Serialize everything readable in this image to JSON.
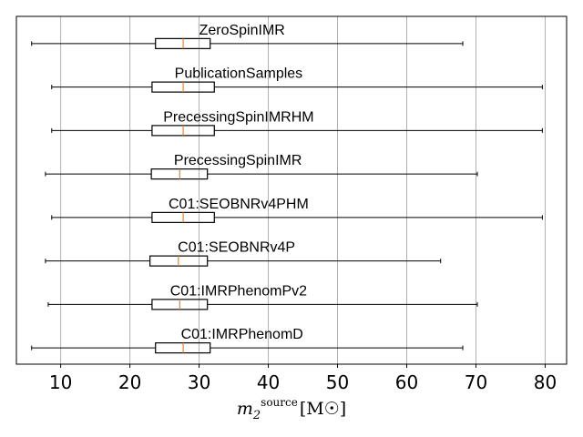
{
  "chart_data": {
    "type": "boxplot",
    "orientation": "horizontal",
    "xlabel": "m₂^source [M☉]",
    "xlabel_parts": {
      "base": "m",
      "sub": "2",
      "sup": "source",
      "unit": "[M☉]"
    },
    "xlim": [
      3.6,
      83.1
    ],
    "xticks": [
      10,
      20,
      30,
      40,
      50,
      60,
      70,
      80
    ],
    "grid": "vertical",
    "legend": "none",
    "colors": {
      "box": "#000000",
      "median": "#ff7f0e",
      "grid": "#b0b0b0",
      "frame": "#000000"
    },
    "series": [
      {
        "name": "ZeroSpinIMR",
        "whislo": 5.8,
        "q1": 23.7,
        "median": 27.7,
        "q3": 31.6,
        "whishi": 68.1
      },
      {
        "name": "PublicationSamples",
        "whislo": 8.7,
        "q1": 23.2,
        "median": 27.7,
        "q3": 32.2,
        "whishi": 79.6
      },
      {
        "name": "PrecessingSpinIMRHM",
        "whislo": 8.7,
        "q1": 23.2,
        "median": 27.7,
        "q3": 32.2,
        "whishi": 79.6
      },
      {
        "name": "PrecessingSpinIMR",
        "whislo": 7.8,
        "q1": 23.1,
        "median": 27.2,
        "q3": 31.2,
        "whishi": 70.2
      },
      {
        "name": "C01:SEOBNRv4PHM",
        "whislo": 8.7,
        "q1": 23.2,
        "median": 27.7,
        "q3": 32.2,
        "whishi": 79.6
      },
      {
        "name": "C01:SEOBNRv4P",
        "whislo": 7.8,
        "q1": 22.9,
        "median": 27.0,
        "q3": 31.2,
        "whishi": 64.9
      },
      {
        "name": "C01:IMRPhenomPv2",
        "whislo": 8.2,
        "q1": 23.2,
        "median": 27.2,
        "q3": 31.2,
        "whishi": 70.2
      },
      {
        "name": "C01:IMRPhenomD",
        "whislo": 5.8,
        "q1": 23.7,
        "median": 27.7,
        "q3": 31.6,
        "whishi": 68.1
      }
    ]
  }
}
